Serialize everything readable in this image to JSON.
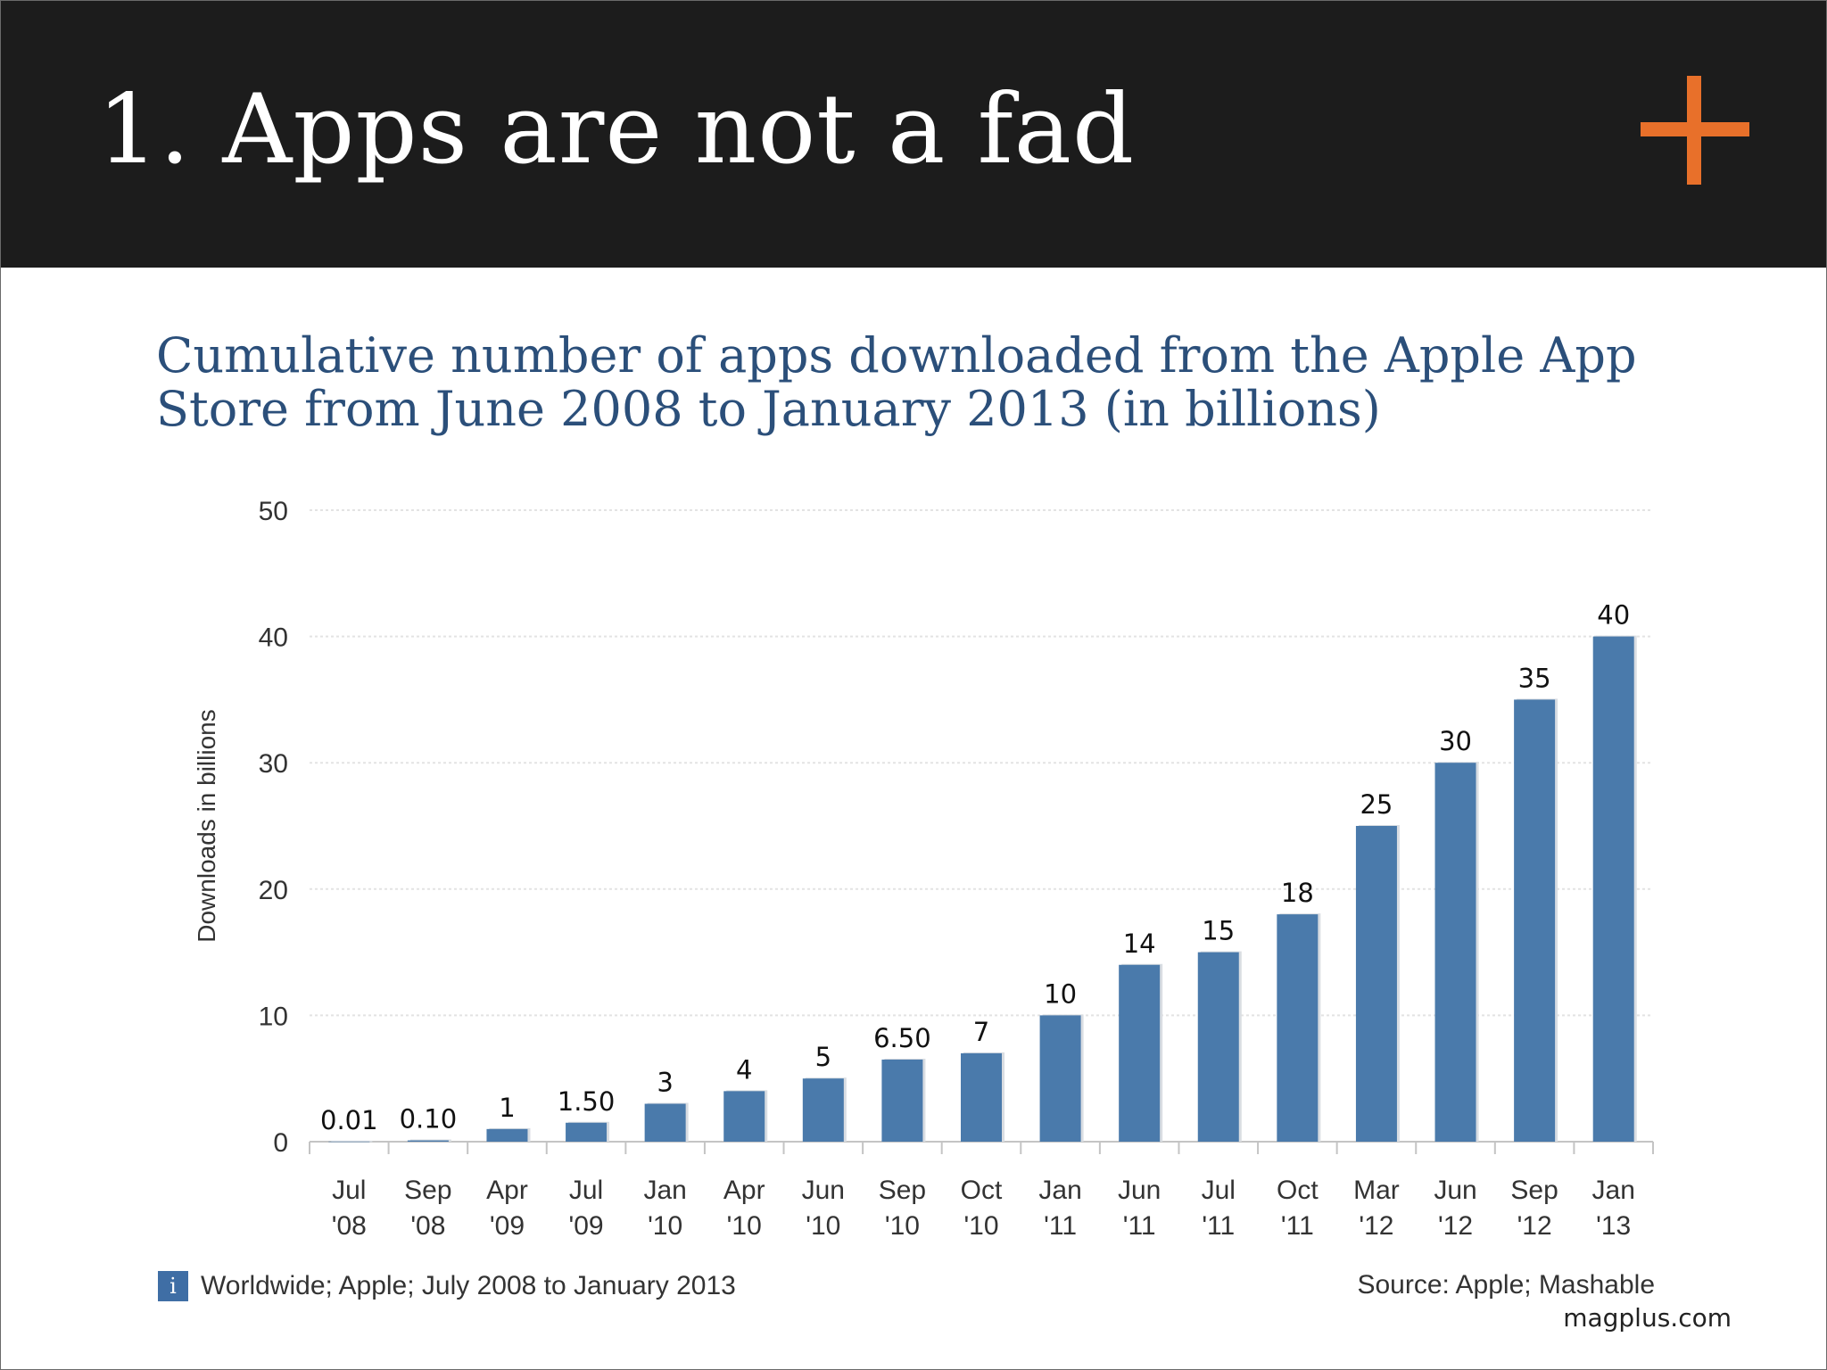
{
  "slide": {
    "title": "1. Apps are not a fad",
    "logo_icon": "plus-icon",
    "logo_color": "#e8702a",
    "watermark": "magplus.com"
  },
  "chart_data": {
    "type": "bar",
    "title": "Cumulative number of apps downloaded from the Apple App Store from June 2008 to January 2013 (in billions)",
    "xlabel": "",
    "ylabel": "Downloads in billions",
    "ylim": [
      0,
      50
    ],
    "yticks": [
      0,
      10,
      20,
      30,
      40,
      50
    ],
    "grid": true,
    "bar_color": "#4a7aab",
    "categories": [
      [
        "Jul",
        "'08"
      ],
      [
        "Sep",
        "'08"
      ],
      [
        "Apr",
        "'09"
      ],
      [
        "Jul",
        "'09"
      ],
      [
        "Jan",
        "'10"
      ],
      [
        "Apr",
        "'10"
      ],
      [
        "Jun",
        "'10"
      ],
      [
        "Sep",
        "'10"
      ],
      [
        "Oct",
        "'10"
      ],
      [
        "Jan",
        "'11"
      ],
      [
        "Jun",
        "'11"
      ],
      [
        "Jul",
        "'11"
      ],
      [
        "Oct",
        "'11"
      ],
      [
        "Mar",
        "'12"
      ],
      [
        "Jun",
        "'12"
      ],
      [
        "Sep",
        "'12"
      ],
      [
        "Jan",
        "'13"
      ]
    ],
    "values": [
      0.01,
      0.1,
      1,
      1.5,
      3,
      4,
      5,
      6.5,
      7,
      10,
      14,
      15,
      18,
      25,
      30,
      35,
      40
    ],
    "data_labels": [
      "0.01",
      "0.10",
      "1",
      "1.50",
      "3",
      "4",
      "5",
      "6.50",
      "7",
      "10",
      "14",
      "15",
      "18",
      "25",
      "30",
      "35",
      "40"
    ],
    "footnote": "Worldwide; Apple; July 2008 to January 2013",
    "footnote_icon": "info-icon",
    "footnote_icon_glyph": "i",
    "source": "Source: Apple; Mashable"
  }
}
